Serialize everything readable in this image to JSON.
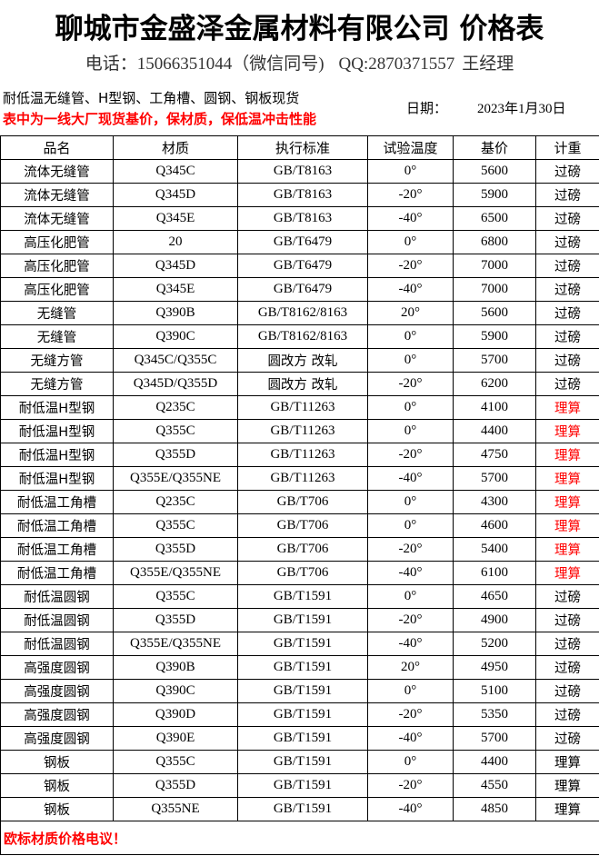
{
  "title": "聊城市金盛泽金属材料有限公司 价格表",
  "contact": {
    "phone": "电话：15066351044（微信同号)",
    "qq": "QQ:2870371557",
    "manager": "王经理"
  },
  "subtitle": "耐低温无缝管、H型钢、工角槽、圆钢、钢板现货",
  "notice": "表中为一线大厂现货基价，保材质，保低温冲击性能",
  "date": {
    "label": "日期：",
    "value": "2023年1月30日"
  },
  "table": {
    "headers": [
      "品名",
      "材质",
      "执行标准",
      "试验温度",
      "基价",
      "计重"
    ],
    "rows": [
      [
        "流体无缝管",
        "Q345C",
        "GB/T8163",
        "0°",
        "5600",
        "过磅"
      ],
      [
        "流体无缝管",
        "Q345D",
        "GB/T8163",
        "-20°",
        "5900",
        "过磅"
      ],
      [
        "流体无缝管",
        "Q345E",
        "GB/T8163",
        "-40°",
        "6500",
        "过磅"
      ],
      [
        "高压化肥管",
        "20",
        "GB/T6479",
        "0°",
        "6800",
        "过磅"
      ],
      [
        "高压化肥管",
        "Q345D",
        "GB/T6479",
        "-20°",
        "7000",
        "过磅"
      ],
      [
        "高压化肥管",
        "Q345E",
        "GB/T6479",
        "-40°",
        "7000",
        "过磅"
      ],
      [
        "无缝管",
        "Q390B",
        "GB/T8162/8163",
        "20°",
        "5600",
        "过磅"
      ],
      [
        "无缝管",
        "Q390C",
        "GB/T8162/8163",
        "0°",
        "5900",
        "过磅"
      ],
      [
        "无缝方管",
        "Q345C/Q355C",
        "圆改方 改轧",
        "0°",
        "5700",
        "过磅"
      ],
      [
        "无缝方管",
        "Q345D/Q355D",
        "圆改方 改轧",
        "-20°",
        "6200",
        "过磅"
      ],
      [
        "耐低温H型钢",
        "Q235C",
        "GB/T11263",
        "0°",
        "4100",
        "理算"
      ],
      [
        "耐低温H型钢",
        "Q355C",
        "GB/T11263",
        "0°",
        "4400",
        "理算"
      ],
      [
        "耐低温H型钢",
        "Q355D",
        "GB/T11263",
        "-20°",
        "4750",
        "理算"
      ],
      [
        "耐低温H型钢",
        "Q355E/Q355NE",
        "GB/T11263",
        "-40°",
        "5700",
        "理算"
      ],
      [
        "耐低温工角槽",
        "Q235C",
        "GB/T706",
        "0°",
        "4300",
        "理算"
      ],
      [
        "耐低温工角槽",
        "Q355C",
        "GB/T706",
        "0°",
        "4600",
        "理算"
      ],
      [
        "耐低温工角槽",
        "Q355D",
        "GB/T706",
        "-20°",
        "5400",
        "理算"
      ],
      [
        "耐低温工角槽",
        "Q355E/Q355NE",
        "GB/T706",
        "-40°",
        "6100",
        "理算"
      ],
      [
        "耐低温圆钢",
        "Q355C",
        "GB/T1591",
        "0°",
        "4650",
        "过磅"
      ],
      [
        "耐低温圆钢",
        "Q355D",
        "GB/T1591",
        "-20°",
        "4900",
        "过磅"
      ],
      [
        "耐低温圆钢",
        "Q355E/Q355NE",
        "GB/T1591",
        "-40°",
        "5200",
        "过磅"
      ],
      [
        "高强度圆钢",
        "Q390B",
        "GB/T1591",
        "20°",
        "4950",
        "过磅"
      ],
      [
        "高强度圆钢",
        "Q390C",
        "GB/T1591",
        "0°",
        "5100",
        "过磅"
      ],
      [
        "高强度圆钢",
        "Q390D",
        "GB/T1591",
        "-20°",
        "5350",
        "过磅"
      ],
      [
        "高强度圆钢",
        "Q390E",
        "GB/T1591",
        "-40°",
        "5700",
        "过磅"
      ],
      [
        "钢板",
        "Q355C",
        "GB/T1591",
        "0°",
        "4400",
        "理算"
      ],
      [
        "钢板",
        "Q355D",
        "GB/T1591",
        "-20°",
        "4550",
        "理算"
      ],
      [
        "钢板",
        "Q355NE",
        "GB/T1591",
        "-40°",
        "4850",
        "理算"
      ]
    ],
    "red_weight_rows": [
      10,
      11,
      12,
      13,
      14,
      15,
      16,
      17
    ],
    "footer": "欧标材质价格电议！"
  },
  "colors": {
    "accent_red": "#ff0000"
  }
}
